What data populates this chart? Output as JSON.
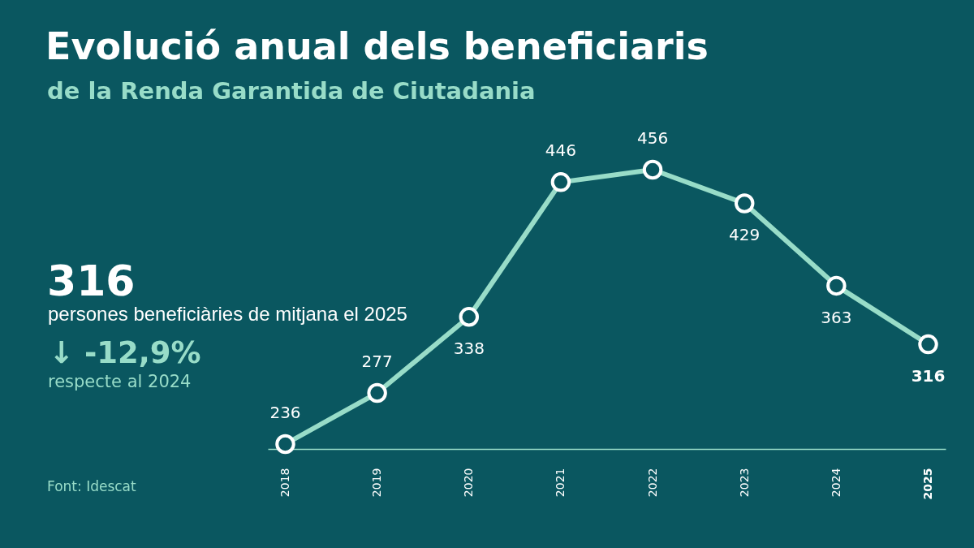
{
  "chart_data": {
    "type": "line",
    "title": "Evolució anual dels beneficiaris",
    "subtitle": "de la Renda Garantida de Ciutadania",
    "categories": [
      "2018",
      "2019",
      "2020",
      "2021",
      "2022",
      "2023",
      "2024",
      "2025"
    ],
    "series": [
      {
        "color": "#98dcc8",
        "values": [
          236,
          277,
          338,
          446,
          456,
          429,
          363,
          316
        ]
      }
    ],
    "data_labels": true,
    "marker": "circle",
    "grid": false,
    "line_style": "solid",
    "annotations": [
      "316",
      "persones beneficiàries de mitjana el 2025",
      "↓ -12,9%",
      "respecte al 2024",
      "Font: Idescat"
    ]
  }
}
